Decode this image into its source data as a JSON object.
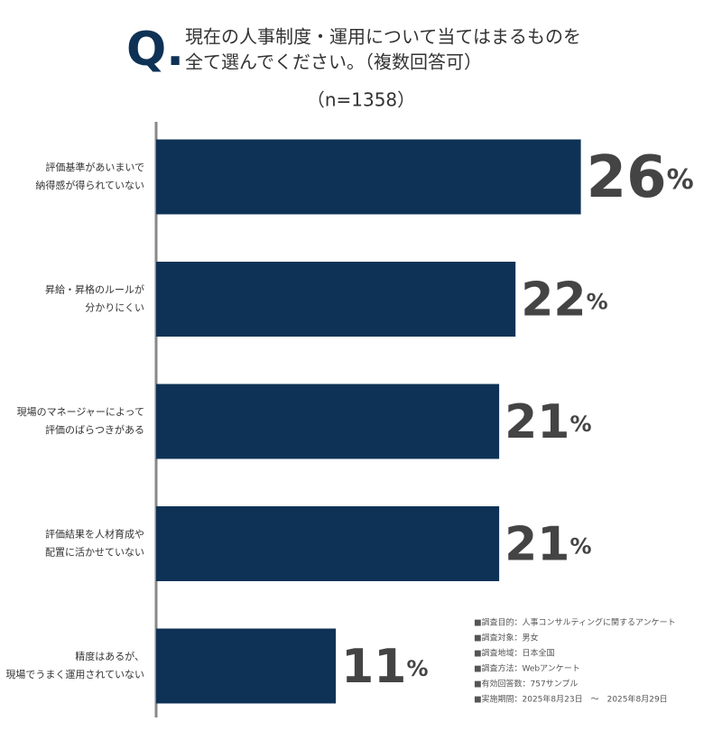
{
  "chart_data": {
    "type": "bar",
    "title_marker": "Q.",
    "title": [
      "現在の人事制度・運用について当てはまるものを",
      "全て選んでください。（複数回答可）"
    ],
    "subtitle": "（n=1358）",
    "categories": [
      [
        "評価基準があいまいで",
        "納得感が得られていない"
      ],
      [
        "昇給・昇格のルールが",
        "分かりにくい"
      ],
      [
        "現場のマネージャーによって",
        "評価のばらつきがある"
      ],
      [
        "評価結果を人材育成や",
        "配置に活かせていない"
      ],
      [
        "精度はあるが、",
        "現場でうまく運用されていない"
      ]
    ],
    "values": [
      26,
      22,
      21,
      21,
      11
    ],
    "value_labels": [
      "26%",
      "22%",
      "21%",
      "21%",
      "11%"
    ],
    "color": "#0e3256",
    "notes": [
      "■調査目的：人事コンサルティングに関するアンケート",
      "■調査対象：男女",
      "■調査地域：日本全国",
      "■調査方法：Webアンケート",
      "■有効回答数：757サンプル",
      "■実施期間：2025年8月23日　～　2025年8月29日"
    ]
  }
}
